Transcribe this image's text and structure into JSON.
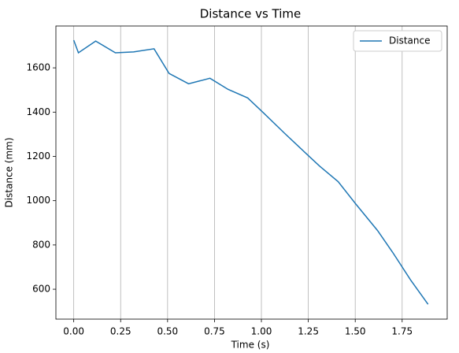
{
  "chart_data": {
    "type": "line",
    "title": "Distance vs Time",
    "x_label": "Time (s)",
    "y_label": "Distance (mm)",
    "x": [
      0,
      0.025,
      0.117,
      0.222,
      0.319,
      0.428,
      0.508,
      0.612,
      0.726,
      0.822,
      0.927,
      1.007,
      1.124,
      1.242,
      1.309,
      1.409,
      1.502,
      1.619,
      1.699,
      1.795,
      1.888
    ],
    "series": [
      {
        "name": "Distance",
        "color": "#1f77b4",
        "values": [
          1725,
          1668,
          1721,
          1668,
          1672,
          1686,
          1575,
          1528,
          1553,
          1503,
          1464,
          1400,
          1304,
          1210,
          1157,
          1086,
          986,
          865,
          767,
          642,
          532
        ]
      }
    ],
    "xlim": [
      -0.095,
      1.99
    ],
    "ylim": [
      465,
      1789
    ],
    "xticks": [
      {
        "value": 0,
        "label": "0.00"
      },
      {
        "value": 0.25,
        "label": "0.25"
      },
      {
        "value": 0.5,
        "label": "0.50"
      },
      {
        "value": 0.75,
        "label": "0.75"
      },
      {
        "value": 1,
        "label": "1.00"
      },
      {
        "value": 1.25,
        "label": "1.25"
      },
      {
        "value": 1.5,
        "label": "1.50"
      },
      {
        "value": 1.75,
        "label": "1.75"
      }
    ],
    "yticks": [
      600,
      800,
      1000,
      1200,
      1400,
      1600
    ],
    "grid": "x",
    "legend": "upper-right"
  }
}
